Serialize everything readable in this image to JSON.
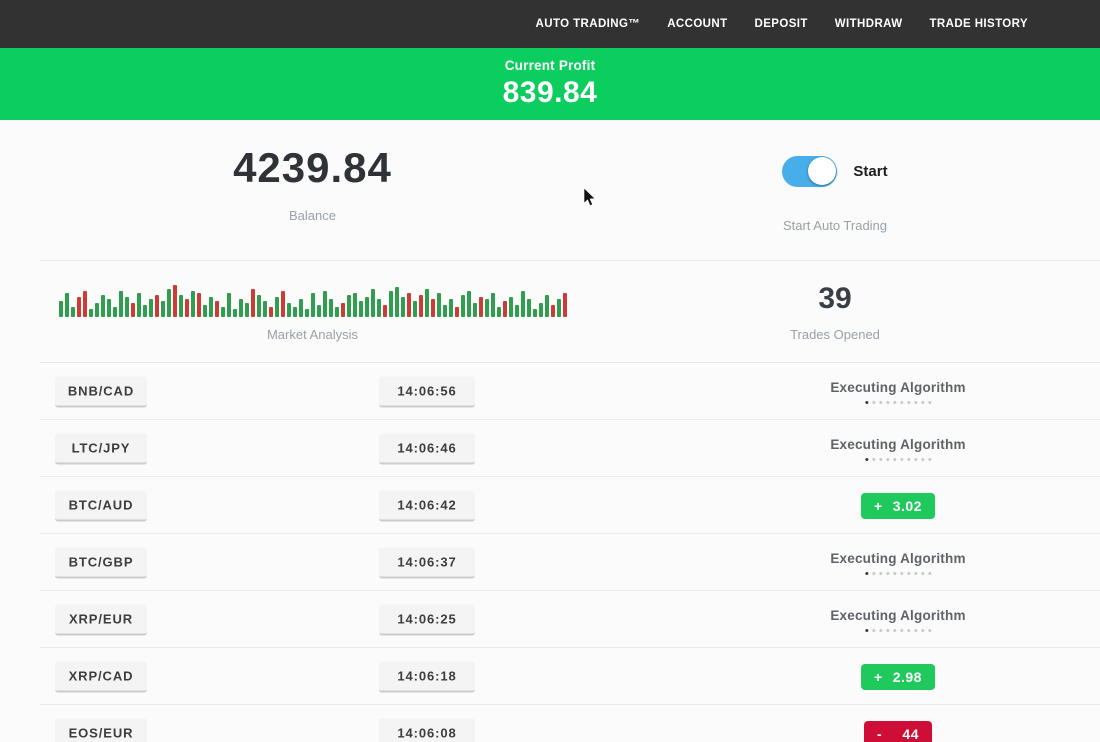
{
  "nav": {
    "items": [
      {
        "label": "AUTO TRADING™"
      },
      {
        "label": "ACCOUNT"
      },
      {
        "label": "DEPOSIT"
      },
      {
        "label": "WITHDRAW"
      },
      {
        "label": "TRADE HISTORY"
      }
    ]
  },
  "banner": {
    "label": "Current Profit",
    "value": "839.84"
  },
  "stats": {
    "balance": {
      "value": "4239.84",
      "label": "Balance"
    },
    "auto_trading": {
      "toggle_label": "Start",
      "label": "Start Auto Trading",
      "toggle_on": true
    },
    "trades_opened": {
      "value": "39",
      "label": "Trades Opened"
    }
  },
  "chart_data": {
    "type": "bar",
    "title": "Market Analysis",
    "note": "decorative candlestick-style market activity strip, green=up red=down, heights in px",
    "bars": [
      "g16",
      "g24",
      "g10",
      "r20",
      "r26",
      "g8",
      "g14",
      "g22",
      "g18",
      "g10",
      "g26",
      "g20",
      "r14",
      "g24",
      "g12",
      "g18",
      "r22",
      "g16",
      "g28",
      "r32",
      "g22",
      "r18",
      "g26",
      "r24",
      "g12",
      "g20",
      "r16",
      "g10",
      "g24",
      "g8",
      "g18",
      "g14",
      "r28",
      "g22",
      "g16",
      "r10",
      "g20",
      "r26",
      "g14",
      "g10",
      "g18",
      "g8",
      "g24",
      "g12",
      "g26",
      "g18",
      "g10",
      "r14",
      "g22",
      "g24",
      "g16",
      "g20",
      "g28",
      "g18",
      "r12",
      "g26",
      "g30",
      "g20",
      "r24",
      "g16",
      "r22",
      "g28",
      "r18",
      "g24",
      "g12",
      "g18",
      "r10",
      "g22",
      "g26",
      "g14",
      "r20",
      "g18",
      "g24",
      "g10",
      "r16",
      "g20",
      "g12",
      "g26",
      "g18",
      "g8",
      "g14",
      "g22",
      "r12",
      "g18",
      "r24"
    ]
  },
  "trades": {
    "executing_label": "Executing Algorithm",
    "executing_dots_total": 10,
    "executing_dots_active": 1,
    "rows": [
      {
        "pair": "BNB/CAD",
        "time": "14:06:56",
        "status": "executing"
      },
      {
        "pair": "LTC/JPY",
        "time": "14:06:46",
        "status": "executing"
      },
      {
        "pair": "BTC/AUD",
        "time": "14:06:42",
        "status": "profit",
        "sign": "+",
        "value": "3.02"
      },
      {
        "pair": "BTC/GBP",
        "time": "14:06:37",
        "status": "executing"
      },
      {
        "pair": "XRP/EUR",
        "time": "14:06:25",
        "status": "executing"
      },
      {
        "pair": "XRP/CAD",
        "time": "14:06:18",
        "status": "profit",
        "sign": "+",
        "value": "2.98"
      },
      {
        "pair": "EOS/EUR",
        "time": "14:06:08",
        "status": "loss",
        "sign": "-",
        "value": "44"
      }
    ]
  },
  "colors": {
    "banner_green": "#0cce5e",
    "profit_green": "#1fc95c",
    "loss_red": "#cf0e38",
    "toggle_blue": "#47aeea",
    "nav_bg": "#323232",
    "bar_green": "#2f9e4f",
    "bar_red": "#cc3b36"
  }
}
